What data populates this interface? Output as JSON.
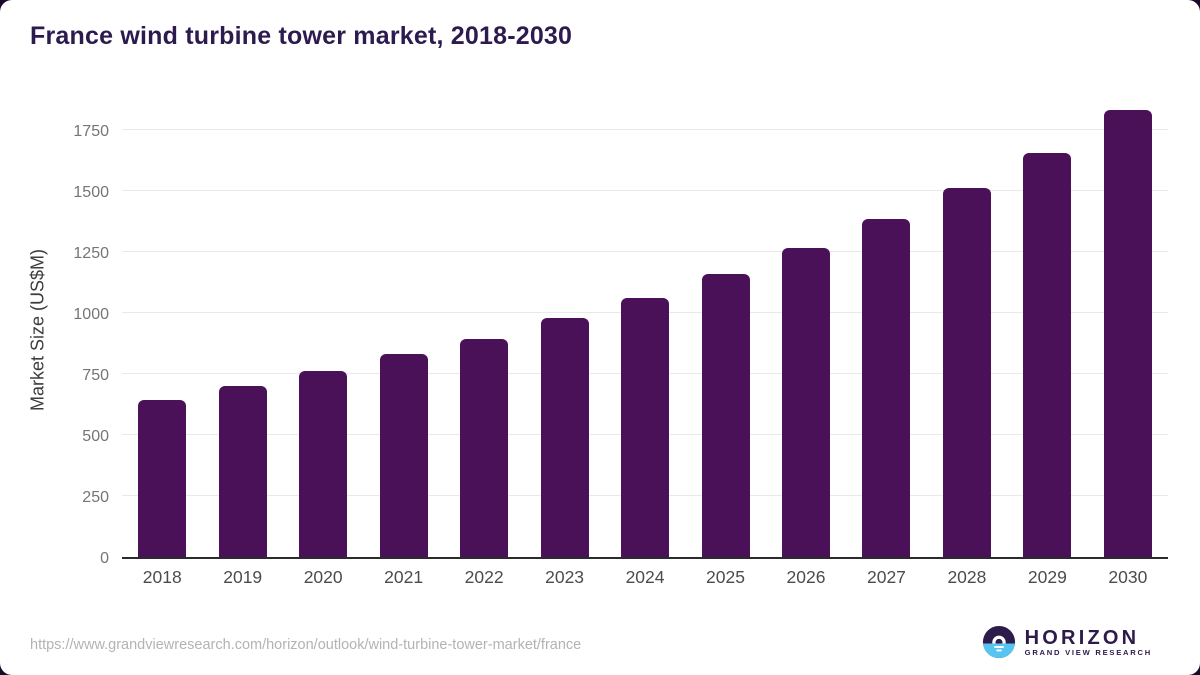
{
  "chart_data": {
    "type": "bar",
    "title": "France wind turbine tower market, 2018-2030",
    "categories": [
      "2018",
      "2019",
      "2020",
      "2021",
      "2022",
      "2023",
      "2024",
      "2025",
      "2026",
      "2027",
      "2028",
      "2029",
      "2030"
    ],
    "values": [
      645,
      700,
      760,
      830,
      895,
      980,
      1060,
      1160,
      1265,
      1385,
      1510,
      1655,
      1830
    ],
    "xlabel": "",
    "ylabel": "Market Size (US$M)",
    "ylim": [
      0,
      1880
    ],
    "yticks": [
      0,
      250,
      500,
      750,
      1000,
      1250,
      1500,
      1750
    ],
    "grid": true,
    "legend": "none",
    "bar_color": "#4a1158"
  },
  "colors": {
    "title_text": "#2d1a4e",
    "bar_fill": "#4a1158",
    "axis_line": "#2b2b2b",
    "gridline": "#e9e9e9",
    "tick_text": "#757575",
    "logo_dark": "#2d1b4a",
    "logo_blue": "#56c5f2",
    "page_backdrop": "#190a28"
  },
  "footer": {
    "source_url": "https://www.grandviewresearch.com/horizon/outlook/wind-turbine-tower-market/france",
    "logo": {
      "name": "HORIZON",
      "subtitle": "GRAND VIEW RESEARCH"
    }
  }
}
